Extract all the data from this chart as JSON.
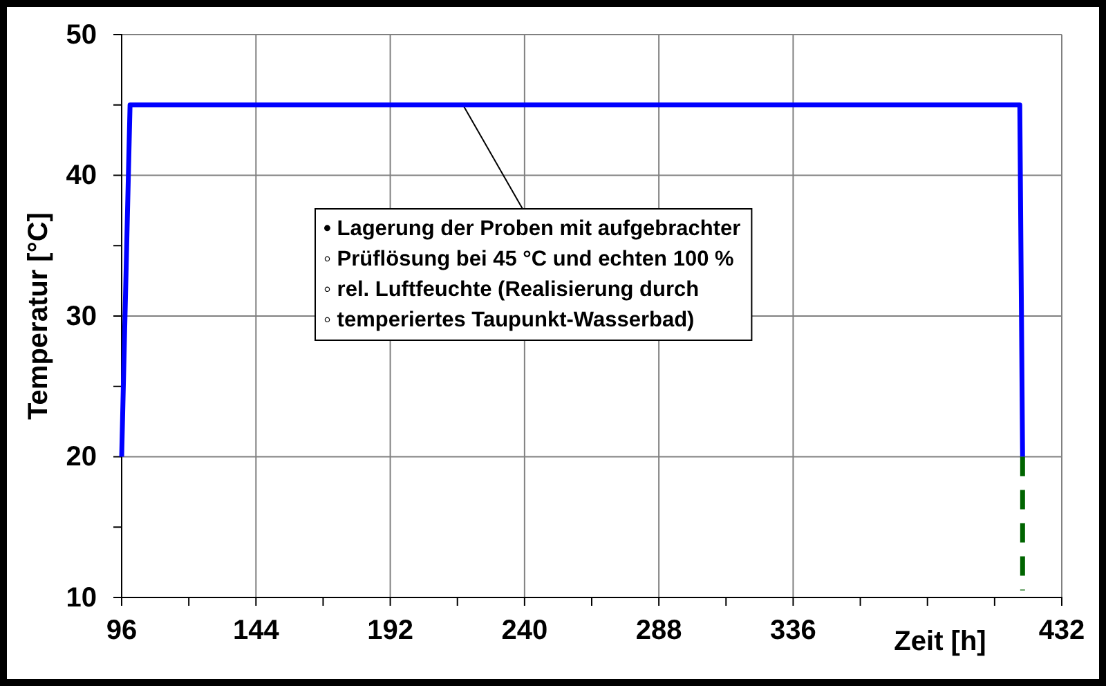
{
  "chart_data": {
    "type": "line",
    "xlabel": "Zeit [h]",
    "ylabel": "Temperatur [°C]",
    "xlim": [
      96,
      432
    ],
    "ylim": [
      10,
      50
    ],
    "xticks": [
      96,
      {
        "value": 120,
        "label": null
      },
      144,
      {
        "value": 168,
        "label": null
      },
      192,
      {
        "value": 216,
        "label": null
      },
      240,
      {
        "value": 264,
        "label": null
      },
      288,
      {
        "value": 312,
        "label": null
      },
      336,
      {
        "value": 360,
        "label": null
      },
      {
        "value": 384,
        "label": null
      },
      {
        "value": 408,
        "label": null
      },
      432
    ],
    "yticks": [
      10,
      {
        "value": 15,
        "label": null
      },
      20,
      {
        "value": 25,
        "label": null
      },
      30,
      {
        "value": 35,
        "label": null
      },
      40,
      {
        "value": 45,
        "label": null
      },
      50
    ],
    "grid": true,
    "marker": "none",
    "series": [
      {
        "color": "#0000ff",
        "x": [
          96,
          99,
          417,
          418
        ],
        "values": [
          20,
          45,
          45,
          20
        ],
        "line_style": "solid"
      },
      {
        "color": "#006400",
        "x": [
          418,
          418
        ],
        "values": [
          20,
          10.5
        ],
        "line_style": "dashed"
      }
    ],
    "annotations": [
      {
        "text": "• Lagerung der Proben mit aufgebrachter\n◦ Prüflösung bei 45 °C und echten 100 %\n◦ rel. Luftfeuchte (Realisierung durch\n◦ temperiertes Taupunkt-Wasserbad)",
        "x": 218,
        "y": 45
      }
    ]
  }
}
